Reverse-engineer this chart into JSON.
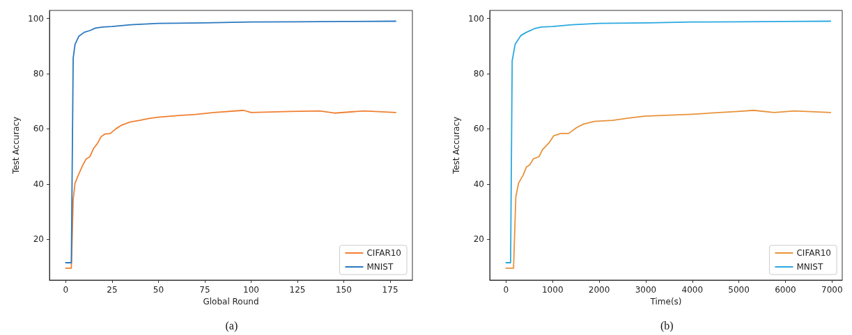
{
  "chart_data": [
    {
      "type": "line",
      "xlabel": "Global Round",
      "ylabel": "Test Accuracy",
      "annotations": [
        "(a)"
      ],
      "xlim": [
        -8.8,
        187
      ],
      "xticks": [
        0,
        25,
        50,
        75,
        100,
        125,
        150,
        175
      ],
      "ylim": [
        5.2,
        102.9
      ],
      "yticks": [
        20,
        40,
        60,
        80,
        100
      ],
      "legend": "bottom right",
      "grid": false,
      "marker": "none",
      "line_style": "solid",
      "series": [
        {
          "name": "CIFAR10",
          "color": "#f07f32",
          "x": [
            0,
            3,
            4,
            5,
            7,
            9,
            11,
            13,
            15,
            17,
            19,
            21,
            24,
            27,
            30,
            35,
            40,
            45,
            50,
            60,
            70,
            80,
            96,
            100,
            121,
            137,
            145,
            161,
            178
          ],
          "values": [
            9.5,
            9.5,
            34.4,
            40.3,
            43.6,
            46.6,
            49.1,
            49.9,
            52.9,
            54.6,
            57.1,
            58.1,
            58.3,
            60,
            61.3,
            62.5,
            63.1,
            63.8,
            64.2,
            64.8,
            65.2,
            65.9,
            66.7,
            65.9,
            66.3,
            66.5,
            65.7,
            66.5,
            65.9
          ]
        },
        {
          "name": "MNIST",
          "color": "#2a78c0",
          "x": [
            0,
            3,
            4,
            5,
            7,
            10,
            13,
            16,
            20,
            25,
            35,
            50,
            75,
            100,
            125,
            150,
            178
          ],
          "values": [
            11.5,
            11.5,
            85.6,
            90.6,
            93.5,
            95,
            95.6,
            96.5,
            96.9,
            97.1,
            97.7,
            98.2,
            98.4,
            98.7,
            98.8,
            98.9,
            99
          ]
        }
      ]
    },
    {
      "type": "line",
      "xlabel": "Time(s)",
      "ylabel": "Test Accuracy",
      "annotations": [
        "(b)"
      ],
      "xlim": [
        -350,
        7220
      ],
      "xticks": [
        0,
        1000,
        2000,
        3000,
        4000,
        5000,
        6000,
        7000
      ],
      "ylim": [
        5.2,
        102.9
      ],
      "yticks": [
        20,
        40,
        60,
        80,
        100
      ],
      "legend": "bottom right",
      "grid": false,
      "marker": "none",
      "line_style": "solid",
      "series": [
        {
          "name": "CIFAR10",
          "color": "#e8923a",
          "x": [
            0,
            161,
            210,
            268,
            366,
            439,
            512,
            585,
            707,
            780,
            927,
            1024,
            1171,
            1341,
            1512,
            1659,
            1902,
            2293,
            2634,
            2976,
            4000,
            4975,
            5317,
            5756,
            6195,
            6968
          ],
          "values": [
            9.5,
            9.5,
            35.3,
            40.3,
            43.2,
            46.2,
            47,
            49.1,
            49.9,
            52.4,
            55,
            57.5,
            58.3,
            58.3,
            60.4,
            61.7,
            62.7,
            63.1,
            63.9,
            64.6,
            65.3,
            66.3,
            66.7,
            65.9,
            66.5,
            65.9
          ]
        },
        {
          "name": "MNIST",
          "color": "#2aa8e0",
          "x": [
            0,
            98,
            132,
            195,
            317,
            439,
            610,
            756,
            1000,
            1415,
            2000,
            3073,
            4000,
            5000,
            6000,
            6968
          ],
          "values": [
            11.5,
            11.5,
            84.7,
            90.6,
            93.8,
            95,
            96.3,
            96.9,
            97.1,
            97.7,
            98.2,
            98.4,
            98.7,
            98.8,
            98.9,
            99
          ]
        }
      ]
    }
  ]
}
